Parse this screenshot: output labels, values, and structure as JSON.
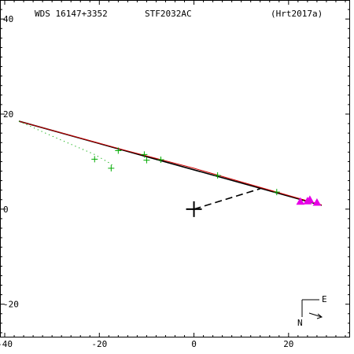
{
  "header": {
    "left": "WDS 16147+3352",
    "center": "STF2032AC",
    "right": "(Hrt2017a)"
  },
  "compass": {
    "east": "E",
    "north": "N"
  },
  "chart_data": {
    "type": "scatter",
    "xlim": [
      -41,
      33
    ],
    "ylim": [
      -27,
      44
    ],
    "x_ticks": [
      -40,
      -20,
      0,
      20
    ],
    "y_ticks": [
      40,
      20,
      0,
      -20
    ],
    "x_tick_labels": [
      "-40",
      "-20",
      "0",
      "20"
    ],
    "y_tick_labels": [
      "40",
      "20",
      "0",
      "-20"
    ],
    "x_minor_step": 2,
    "y_minor_step": 2,
    "grid": false,
    "colors": {
      "axes": "#000000",
      "orbit_black": "#000000",
      "orbit_red": "#cc0000",
      "obs_green": "#00aa00",
      "obs_magenta": "#e600e6"
    },
    "series": [
      {
        "type": "line",
        "style": "solid",
        "color": "#000000",
        "points": [
          [
            -37,
            18.5
          ],
          [
            27,
            0.8
          ]
        ]
      },
      {
        "type": "line",
        "style": "solid",
        "color": "#cc0000",
        "points": [
          [
            -37,
            18.5
          ],
          [
            -15,
            12.5
          ],
          [
            0,
            8.6
          ],
          [
            15,
            4.3
          ],
          [
            27,
            0.9
          ]
        ]
      },
      {
        "type": "line",
        "style": "dotted",
        "color": "#00aa00",
        "points": [
          [
            -37,
            18.5
          ],
          [
            -28,
            14.5
          ],
          [
            -21,
            11.5
          ],
          [
            -17.5,
            9.5
          ],
          [
            -17,
            8.8
          ]
        ]
      },
      {
        "type": "line",
        "style": "dashed",
        "color": "#000000",
        "points": [
          [
            0,
            0
          ],
          [
            14,
            4.3
          ]
        ]
      },
      {
        "type": "points",
        "marker": "plus",
        "color": "#00aa00",
        "points": [
          [
            -21,
            10.5
          ],
          [
            -17.5,
            8.6
          ],
          [
            -16,
            12.3
          ],
          [
            -10.5,
            11.5
          ],
          [
            -10,
            10.3
          ],
          [
            -7,
            10.4
          ],
          [
            5,
            7.1
          ],
          [
            17.5,
            3.6
          ]
        ]
      },
      {
        "type": "points",
        "marker": "triangle",
        "color": "#e600e6",
        "points": [
          [
            22.5,
            1.5
          ],
          [
            24,
            1.6
          ],
          [
            24.5,
            1.9
          ],
          [
            26,
            1.3
          ]
        ]
      },
      {
        "type": "points",
        "marker": "primary-cross",
        "color": "#000000",
        "points": [
          [
            0,
            0
          ]
        ]
      }
    ]
  }
}
